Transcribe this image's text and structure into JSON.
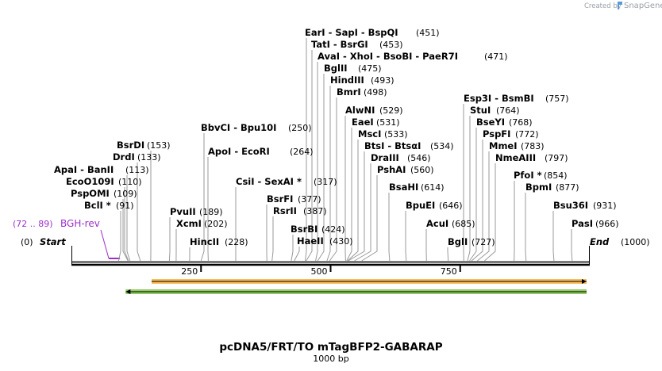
{
  "header": {
    "credit_text": "Created by",
    "brand_name": "SnapGene"
  },
  "map": {
    "title": "pcDNA5/FRT/TO mTagBFP2-GABARAP",
    "subtitle": "1000 bp",
    "start_label": "Start",
    "start_pos": "(0)",
    "end_label": "End",
    "end_pos": "(1000)",
    "ticks": [
      {
        "value": 250,
        "label": "250"
      },
      {
        "value": 500,
        "label": "500"
      },
      {
        "value": 750,
        "label": "750"
      }
    ],
    "feature": {
      "label": "BGH-rev",
      "range": "(72 .. 89)",
      "start": 72,
      "end": 89,
      "color": "#9b30c9"
    },
    "bars": [
      {
        "name": "orange-arrow",
        "direction": "forward",
        "start": 170,
        "end": 1000,
        "color": "#f5a623"
      },
      {
        "name": "green-arrow",
        "direction": "reverse",
        "start": 120,
        "end": 1000,
        "color": "#6ab82e"
      }
    ]
  },
  "sites": [
    {
      "name": "BclI *",
      "pos_label": "(91)",
      "pos": 91
    },
    {
      "name": "PspOMI",
      "pos_label": "(109)",
      "pos": 109
    },
    {
      "name": "EcoO109I",
      "pos_label": "(110)",
      "pos": 110
    },
    {
      "name": "ApaI - BanII",
      "pos_label": "(113)",
      "pos": 113
    },
    {
      "name": "DrdI",
      "pos_label": "(133)",
      "pos": 133
    },
    {
      "name": "BsrDI",
      "pos_label": "(153)",
      "pos": 153
    },
    {
      "name": "PvuII",
      "pos_label": "(189)",
      "pos": 189
    },
    {
      "name": "XcmI",
      "pos_label": "(202)",
      "pos": 202
    },
    {
      "name": "HincII",
      "pos_label": "(228)",
      "pos": 228
    },
    {
      "name": "BbvCI - Bpu10I",
      "pos_label": "(250)",
      "pos": 250
    },
    {
      "name": "ApoI - EcoRI",
      "pos_label": "(264)",
      "pos": 264
    },
    {
      "name": "CsiI - SexAI *",
      "pos_label": "(317)",
      "pos": 317
    },
    {
      "name": "BsrFI",
      "pos_label": "(377)",
      "pos": 377
    },
    {
      "name": "RsrII",
      "pos_label": "(387)",
      "pos": 387
    },
    {
      "name": "BsrBI",
      "pos_label": "(424)",
      "pos": 424
    },
    {
      "name": "HaeII",
      "pos_label": "(430)",
      "pos": 430
    },
    {
      "name": "EarI - SapI - BspQI",
      "pos_label": "(451)",
      "pos": 451
    },
    {
      "name": "TatI - BsrGI",
      "pos_label": "(453)",
      "pos": 453
    },
    {
      "name": "AvaI - XhoI - BsoBI - PaeR7I",
      "pos_label": "(471)",
      "pos": 471
    },
    {
      "name": "BglII",
      "pos_label": "(475)",
      "pos": 475
    },
    {
      "name": "HindIII",
      "pos_label": "(493)",
      "pos": 493
    },
    {
      "name": "BmrI",
      "pos_label": "(498)",
      "pos": 498
    },
    {
      "name": "AlwNI",
      "pos_label": "(529)",
      "pos": 529
    },
    {
      "name": "EaeI",
      "pos_label": "(531)",
      "pos": 531
    },
    {
      "name": "MscI",
      "pos_label": "(533)",
      "pos": 533
    },
    {
      "name": "BtsI - BtsαI",
      "pos_label": "(534)",
      "pos": 534
    },
    {
      "name": "DraIII",
      "pos_label": "(546)",
      "pos": 546
    },
    {
      "name": "PshAI",
      "pos_label": "(560)",
      "pos": 560
    },
    {
      "name": "BsaHI",
      "pos_label": "(614)",
      "pos": 614
    },
    {
      "name": "BpuEI",
      "pos_label": "(646)",
      "pos": 646
    },
    {
      "name": "AcuI",
      "pos_label": "(685)",
      "pos": 685
    },
    {
      "name": "BglI",
      "pos_label": "(727)",
      "pos": 727
    },
    {
      "name": "Esp3I - BsmBI",
      "pos_label": "(757)",
      "pos": 757
    },
    {
      "name": "StuI",
      "pos_label": "(764)",
      "pos": 764
    },
    {
      "name": "BseYI",
      "pos_label": "(768)",
      "pos": 768
    },
    {
      "name": "PspFI",
      "pos_label": "(772)",
      "pos": 772
    },
    {
      "name": "MmeI",
      "pos_label": "(783)",
      "pos": 783
    },
    {
      "name": "NmeAIII",
      "pos_label": "(797)",
      "pos": 797
    },
    {
      "name": "PfoI *",
      "pos_label": "(854)",
      "pos": 854
    },
    {
      "name": "BpmI",
      "pos_label": "(877)",
      "pos": 877
    },
    {
      "name": "Bsu36I",
      "pos_label": "(931)",
      "pos": 931
    },
    {
      "name": "PasI",
      "pos_label": "(966)",
      "pos": 966
    }
  ]
}
